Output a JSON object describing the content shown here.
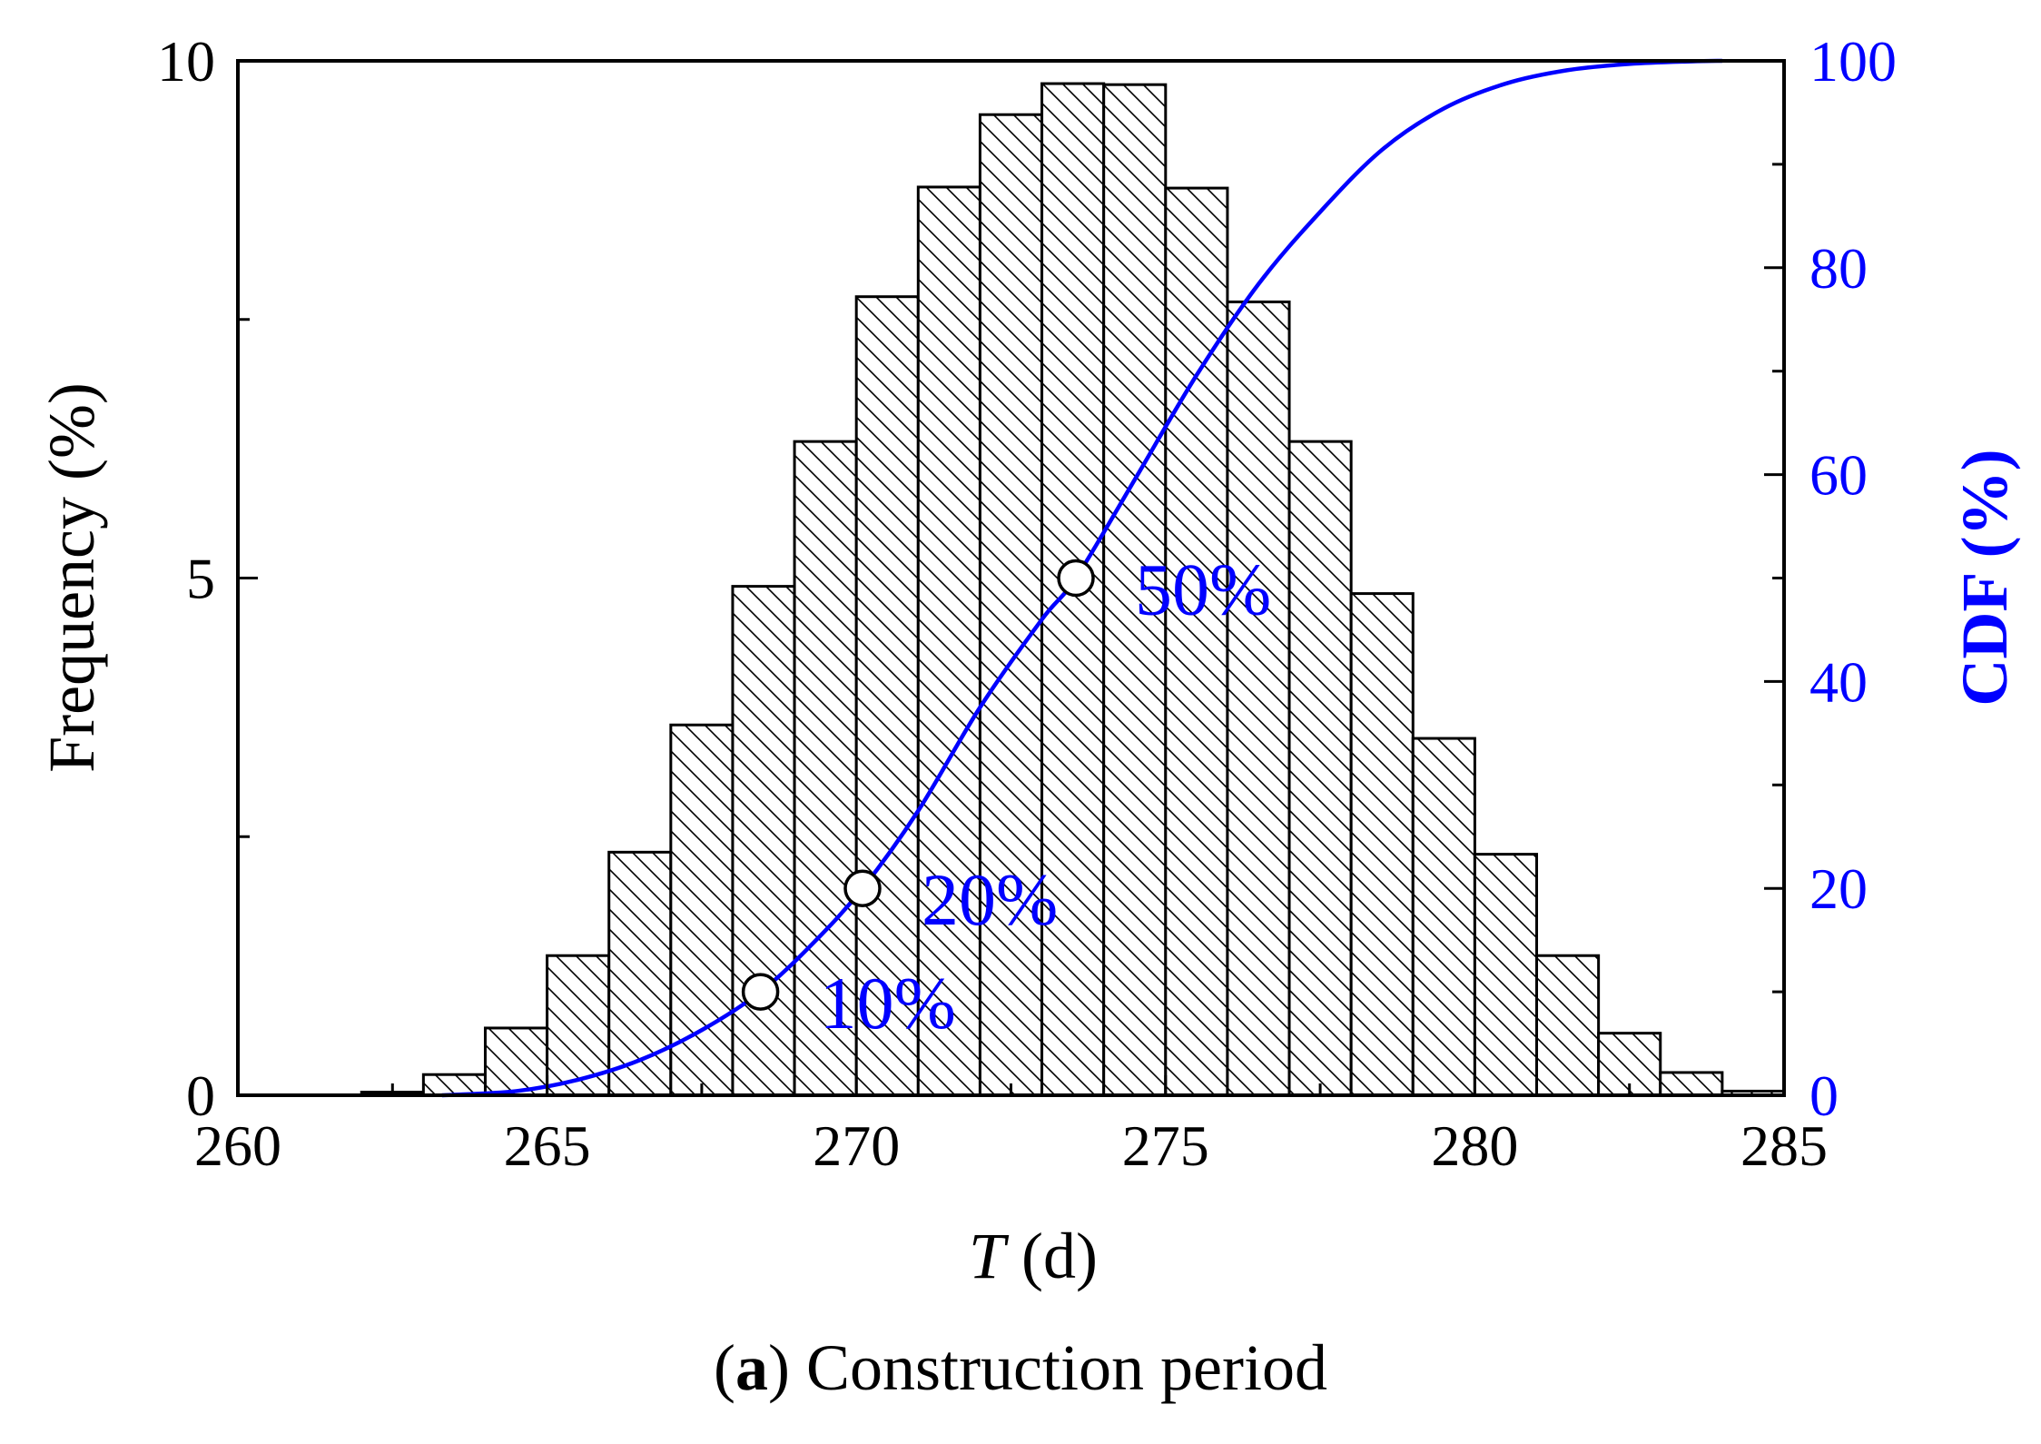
{
  "chart_data": {
    "type": "bar",
    "title": "",
    "xlabel_italic": "T",
    "xlabel_rest": " (d)",
    "ylabel": "Frequency (%)",
    "y2label": "CDF (%)",
    "xlim": [
      260,
      285
    ],
    "ylim": [
      0,
      10
    ],
    "y2lim": [
      0,
      100
    ],
    "x_ticks": [
      "260",
      "265",
      "270",
      "275",
      "280",
      "285"
    ],
    "y_ticks": [
      "0",
      "5",
      "10"
    ],
    "y2_ticks": [
      "0",
      "20",
      "40",
      "60",
      "80",
      "100"
    ],
    "bin_width": 1,
    "bin_starts": [
      262,
      263,
      264,
      265,
      266,
      267,
      268,
      269,
      270,
      271,
      272,
      273,
      274,
      275,
      276,
      277,
      278,
      279,
      280,
      281,
      282,
      283,
      284
    ],
    "frequencies": [
      0.03,
      0.2,
      0.65,
      1.35,
      2.35,
      3.58,
      4.92,
      6.32,
      7.72,
      8.78,
      9.48,
      9.78,
      9.77,
      8.77,
      7.67,
      6.32,
      4.85,
      3.45,
      2.33,
      1.35,
      0.6,
      0.22,
      0.04
    ],
    "cdf_series": {
      "name": "CDF",
      "x": [
        263.3,
        264.5,
        265.5,
        266.5,
        267.5,
        268.45,
        269.3,
        270.1,
        271.0,
        272.0,
        273.0,
        273.55,
        274.5,
        275.5,
        276.5,
        277.5,
        278.5,
        279.5,
        280.5,
        281.5,
        282.5,
        283.5,
        284.0
      ],
      "y": [
        0,
        0.4,
        1.5,
        3.4,
        6.3,
        10,
        14.7,
        20,
        27.5,
        37.5,
        46,
        50,
        59.5,
        69.6,
        78.4,
        85.4,
        91.4,
        95.4,
        97.8,
        99.1,
        99.7,
        99.95,
        100
      ]
    },
    "markers": [
      {
        "x": 268.45,
        "cdf": 10,
        "label": "10%"
      },
      {
        "x": 270.1,
        "cdf": 20,
        "label": "20%"
      },
      {
        "x": 273.55,
        "cdf": 50,
        "label": "50%"
      }
    ],
    "colors": {
      "axis": "#000000",
      "cdf": "#0000ff",
      "bar_fill": "#ffffff",
      "hatch": "#000000"
    }
  },
  "caption": {
    "bold": "a",
    "open": "(",
    "close": ") ",
    "text": "Construction period"
  }
}
